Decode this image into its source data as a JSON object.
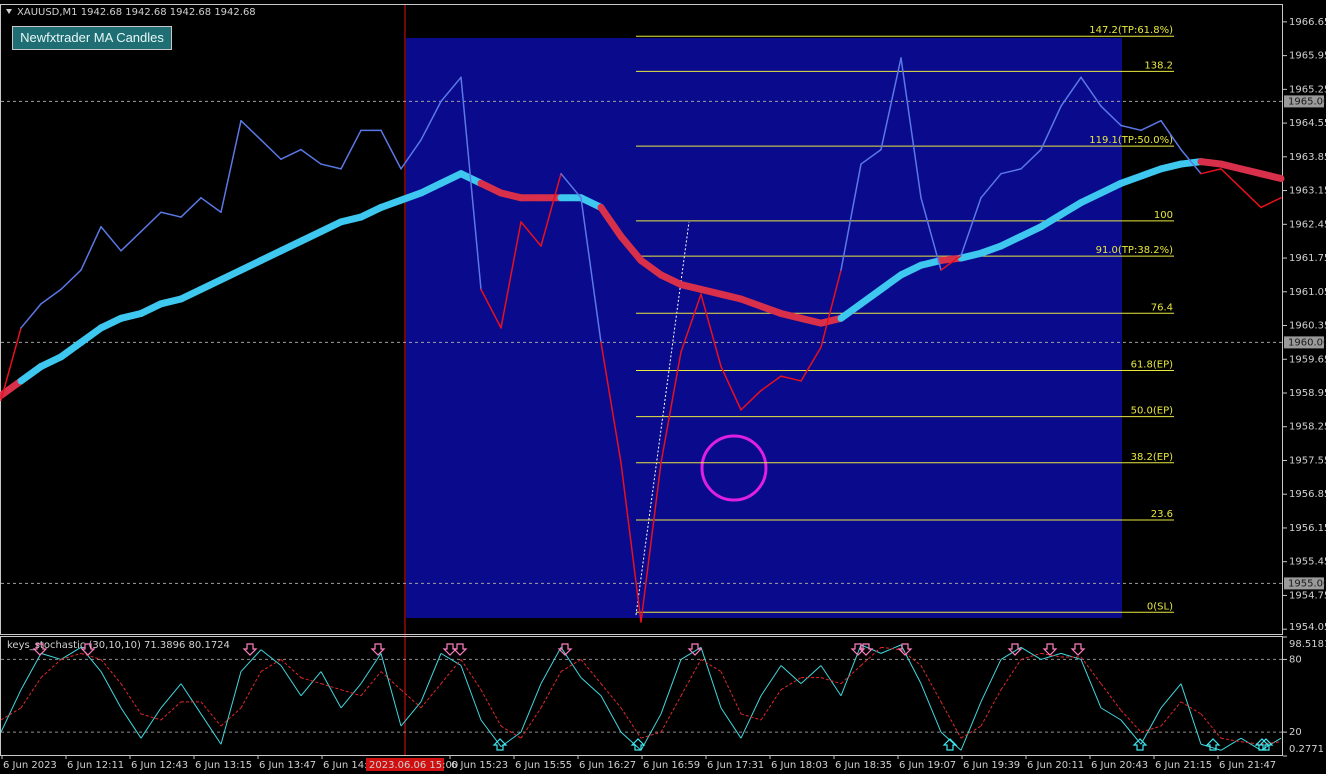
{
  "chart_data": [
    {
      "type": "line",
      "title": "XAUUSD,M1  1942.68 1942.68 1942.68 1942.68",
      "indicator_label": "Newfxtrader MA Candles",
      "ylim": [
        1953.95,
        1967.0
      ],
      "yticks": [
        1966.65,
        1965.95,
        1965.25,
        1964.55,
        1963.85,
        1963.15,
        1962.45,
        1961.75,
        1961.05,
        1960.35,
        1959.65,
        1958.95,
        1958.25,
        1957.55,
        1956.85,
        1956.15,
        1955.45,
        1954.75,
        1954.05
      ],
      "xticks": [
        "6 Jun 2023",
        "6 Jun 12:11",
        "6 Jun 12:43",
        "6 Jun 13:15",
        "6 Jun 13:47",
        "6 Jun 14:1",
        null,
        "6 Jun 15:23",
        "6 Jun 15:55",
        "6 Jun 16:27",
        "6 Jun 16:59",
        "6 Jun 17:31",
        "6 Jun 18:03",
        "6 Jun 18:35",
        "6 Jun 19:07",
        "6 Jun 19:39",
        "6 Jun 20:11",
        "6 Jun 20:43",
        "6 Jun 21:15",
        "6 Jun 21:47"
      ],
      "cursor_time": "2023.06.06 15:00",
      "price": {
        "colors": [
          "#5a78e6",
          "#e8101c"
        ],
        "values": [
          1958.8,
          1960.3,
          1960.8,
          1961.1,
          1961.5,
          1962.4,
          1961.9,
          1962.3,
          1962.7,
          1962.6,
          1963.0,
          1962.7,
          1964.6,
          1964.2,
          1963.8,
          1964.0,
          1963.7,
          1963.6,
          1964.4,
          1964.4,
          1963.6,
          1964.2,
          1965.0,
          1965.5,
          1961.1,
          1960.3,
          1962.5,
          1962.0,
          1963.5,
          1963.0,
          1960.0,
          1957.5,
          1954.2,
          1957.5,
          1959.8,
          1961.0,
          1959.5,
          1958.6,
          1959.0,
          1959.3,
          1959.2,
          1959.9,
          1961.5,
          1963.7,
          1964.0,
          1965.9,
          1963.0,
          1961.5,
          1961.8,
          1963.0,
          1963.5,
          1963.6,
          1964.0,
          1964.9,
          1965.5,
          1964.9,
          1964.5,
          1964.4,
          1964.6,
          1964.0,
          1963.5,
          1963.6,
          1963.2,
          1962.8,
          1963.0
        ]
      },
      "ma": {
        "colors": [
          "#3ec8f0",
          "#d8304a"
        ],
        "values": [
          1958.9,
          1959.2,
          1959.5,
          1959.7,
          1960.0,
          1960.3,
          1960.5,
          1960.6,
          1960.8,
          1960.9,
          1961.1,
          1961.3,
          1961.5,
          1961.7,
          1961.9,
          1962.1,
          1962.3,
          1962.5,
          1962.6,
          1962.8,
          1962.95,
          1963.1,
          1963.3,
          1963.5,
          1963.3,
          1963.1,
          1963.0,
          1963.0,
          1963.0,
          1963.0,
          1962.8,
          1962.2,
          1961.7,
          1961.4,
          1961.2,
          1961.1,
          1961.0,
          1960.9,
          1960.75,
          1960.6,
          1960.5,
          1960.4,
          1960.5,
          1960.8,
          1961.1,
          1961.4,
          1961.6,
          1961.7,
          1961.75,
          1961.85,
          1962.0,
          1962.2,
          1962.4,
          1962.65,
          1962.9,
          1963.1,
          1963.3,
          1963.45,
          1963.6,
          1963.7,
          1963.75,
          1963.7,
          1963.6,
          1963.5,
          1963.4
        ]
      },
      "levels": [
        {
          "value": 1965,
          "label": "1965.00"
        },
        {
          "value": 1960,
          "label": "1960.00"
        },
        {
          "value": 1955,
          "label": "1955.00"
        }
      ],
      "fib": {
        "low": 1954.4,
        "high": 1962.52,
        "color": "#e8e840",
        "levels": [
          {
            "value": 147.2,
            "label": "147.2(TP:61.8%)"
          },
          138.2,
          {
            "value": 119.1,
            "label": "119.1(TP:50.0%)"
          },
          100,
          {
            "value": 91.0,
            "label": "91.0(TP:38.2%)"
          },
          76.4,
          {
            "value": 61.8,
            "label": "61.8(EP)"
          },
          {
            "value": 50.0,
            "label": "50.0(EP)"
          },
          {
            "value": 38.2,
            "label": "38.2(EP)"
          },
          23.6,
          {
            "value": 0,
            "label": "0(SL)"
          }
        ]
      }
    },
    {
      "type": "line",
      "title": "keys_stochastic (30,10,10) 71.3896 80.1724",
      "ylim": [
        0.2771,
        98.5181
      ],
      "yticks": [
        98.5181,
        80,
        20,
        0.2771
      ],
      "series": [
        {
          "color": "#40d8e0",
          "values": [
            20,
            55,
            85,
            80,
            90,
            70,
            40,
            15,
            40,
            60,
            35,
            10,
            70,
            88,
            75,
            50,
            70,
            40,
            60,
            85,
            25,
            45,
            85,
            75,
            30,
            8,
            20,
            60,
            90,
            65,
            50,
            20,
            5,
            35,
            80,
            90,
            40,
            15,
            50,
            75,
            60,
            75,
            50,
            92,
            85,
            92,
            60,
            20,
            5,
            45,
            80,
            90,
            80,
            85,
            80,
            40,
            30,
            10,
            40,
            60,
            10,
            5,
            15,
            5,
            15
          ]
        },
        {
          "color": "#e02828",
          "values": [
            30,
            40,
            65,
            80,
            85,
            80,
            60,
            35,
            30,
            45,
            45,
            25,
            40,
            70,
            80,
            65,
            60,
            55,
            50,
            70,
            55,
            40,
            60,
            80,
            55,
            25,
            15,
            40,
            70,
            80,
            60,
            40,
            15,
            20,
            50,
            80,
            70,
            35,
            30,
            55,
            65,
            65,
            60,
            75,
            90,
            88,
            75,
            45,
            15,
            25,
            55,
            80,
            85,
            82,
            82,
            60,
            38,
            20,
            25,
            45,
            35,
            15,
            12,
            10,
            12
          ]
        }
      ]
    }
  ]
}
